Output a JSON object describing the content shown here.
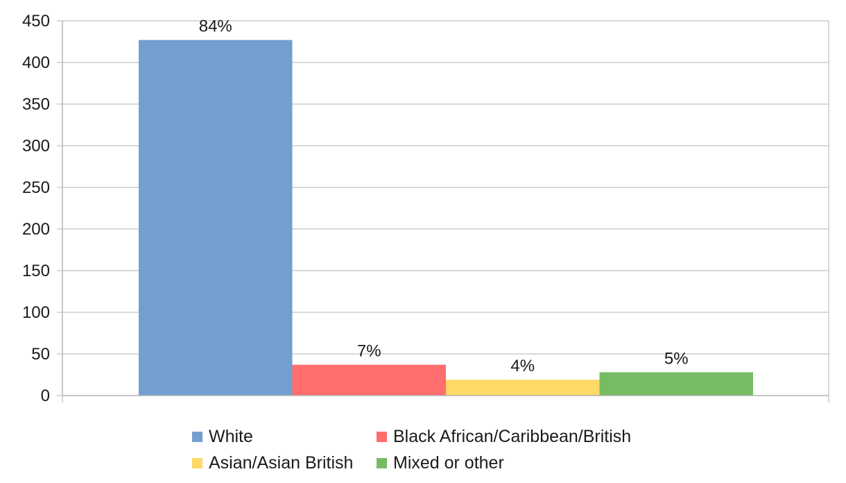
{
  "chart_data": {
    "type": "bar",
    "series": [
      {
        "name": "White",
        "value": 427,
        "label": "84%",
        "color": "#729fcf"
      },
      {
        "name": "Black African/Caribbean/British",
        "value": 37,
        "label": "7%",
        "color": "#ff6d6d"
      },
      {
        "name": "Asian/Asian British",
        "value": 19,
        "label": "4%",
        "color": "#ffd966"
      },
      {
        "name": "Mixed or other",
        "value": 28,
        "label": "5%",
        "color": "#77bc65"
      }
    ],
    "ylim": [
      0,
      450
    ],
    "yticks": [
      "0",
      "50",
      "100",
      "150",
      "200",
      "250",
      "300",
      "350",
      "400",
      "450"
    ],
    "grid": true,
    "legend_position": "bottom"
  }
}
